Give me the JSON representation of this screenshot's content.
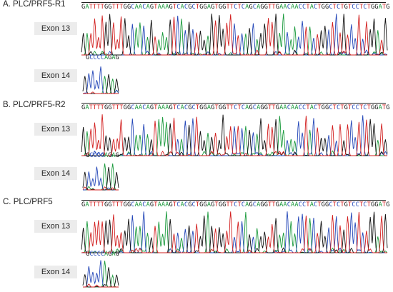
{
  "panels": [
    {
      "title": "A. PLC/PRF5-R1",
      "exon13_label": "Exon 13",
      "exon14_label": "Exon 14",
      "sequence_exon13": "GATTTTGGTTTGGCAACAGTAAAGTCACGCTGGAGTGGTTCTCAGCAGGTTGAACAACCTACTGGCTCTGTCCTCTGGATG",
      "sequence_exon14": "GCCCCAGAG"
    },
    {
      "title": "B. PLC/PRF5-R2",
      "exon13_label": "Exon 13",
      "exon14_label": "Exon 14",
      "sequence_exon13": "GATTTTGGTTTGGCAACAGTAAAGTCACGCTGGAGTGGTTCTCAGCAGGTTGAACAACCTACTGGCTCTGTCCTCTGGATG",
      "sequence_exon14": "GCCCCAGAG"
    },
    {
      "title": "C. PLC/PRF5",
      "exon13_label": "Exon 13",
      "exon14_label": "Exon 14",
      "sequence_exon13": "GATTTTGGTTTGGCAACAGTAAAGTCACGCTGGAGTGGTTCTCAGCAGGTTGAACAACCTACTGGCTCTGTCCTCTGGATG",
      "sequence_exon14": "GCCCCAGAG"
    }
  ],
  "colors": {
    "A": "#1a9a3c",
    "T": "#d21f1f",
    "G": "#111111",
    "C": "#2447b8"
  }
}
